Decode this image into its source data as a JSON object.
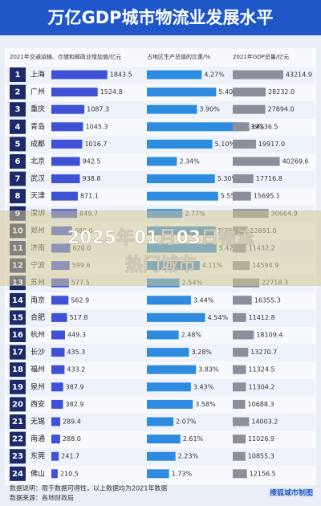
{
  "header": {
    "title": "万亿GDP城市物流业发展水平"
  },
  "rows": {
    "ranks": [
      1,
      2,
      3,
      4,
      5,
      6,
      7,
      8,
      9,
      10,
      11,
      12,
      13,
      14,
      15,
      16,
      17,
      18,
      19,
      20,
      21,
      22,
      23,
      24
    ],
    "cities": [
      "上海",
      "广州",
      "重庆",
      "青岛",
      "成都",
      "北京",
      "武汉",
      "天津",
      "深圳",
      "郑州",
      "济南",
      "宁波",
      "苏州",
      "南京",
      "合肥",
      "杭州",
      "长沙",
      "福州",
      "泉州",
      "西安",
      "无锡",
      "南通",
      "东莞",
      "佛山"
    ]
  },
  "chart_data": [
    {
      "type": "bar",
      "orientation": "horizontal",
      "title": "2021年交通运输、仓储和邮政业增加值/亿元",
      "color": "#3f52d6",
      "xlim": [
        0,
        1850
      ],
      "values": [
        1843.5,
        1524.8,
        1087.3,
        1045.3,
        1016.7,
        942.5,
        938.8,
        871.1,
        849.7,
        680.0,
        620.0,
        599.6,
        577.5,
        562.9,
        517.8,
        449.3,
        435.3,
        433.2,
        387.9,
        382.9,
        289.4,
        288.0,
        241.7,
        210.5
      ],
      "value_labels": [
        "1843.5",
        "1524.8",
        "1087.3",
        "1045.3",
        "1016.7",
        "942.5",
        "938.8",
        "871.1",
        "849.7",
        "680.0",
        "620.0",
        "599.6",
        "577.5",
        "562.9",
        "517.8",
        "449.3",
        "435.3",
        "433.2",
        "387.9",
        "382.9",
        "289.4",
        "288.0",
        "241.7",
        "210.5"
      ]
    },
    {
      "type": "bar",
      "orientation": "horizontal",
      "title": "占地区生产总值的比重/%",
      "color": "#2d8be0",
      "xlim": [
        0,
        7.5
      ],
      "values": [
        4.27,
        5.4,
        3.9,
        7.39,
        5.1,
        2.34,
        5.3,
        5.55,
        2.77,
        5.36,
        5.42,
        4.11,
        2.54,
        3.44,
        4.54,
        2.48,
        3.28,
        3.83,
        3.43,
        3.58,
        2.07,
        2.61,
        2.23,
        1.73
      ],
      "value_labels": [
        "4.27%",
        "5.40%",
        "3.90%",
        "7.39%",
        "5.10%",
        "2.34%",
        "5.30%",
        "5.55%",
        "2.77%",
        "5.36%",
        "5.42%",
        "4.11%",
        "2.54%",
        "3.44%",
        "4.54%",
        "2.48%",
        "3.28%",
        "3.83%",
        "3.43%",
        "3.58%",
        "2.07%",
        "2.61%",
        "2.23%",
        "1.73%"
      ]
    },
    {
      "type": "bar",
      "orientation": "horizontal",
      "title": "2021年GDP总量/亿元",
      "color": "#8a8f9a",
      "xlim": [
        0,
        44000
      ],
      "values": [
        43214.9,
        28232.0,
        27894.0,
        14136.5,
        19917.0,
        40269.6,
        17716.8,
        15695.1,
        30664.9,
        12691.0,
        11432.2,
        14594.9,
        22718.3,
        16355.3,
        11412.8,
        18109.4,
        13270.7,
        11324.5,
        11304.2,
        10688.3,
        14003.2,
        11026.9,
        10855.3,
        12156.5
      ],
      "value_labels": [
        "43214.9",
        "28232.0",
        "27894.0",
        "14136.5",
        "19917.0",
        "40269.6",
        "17716.8",
        "15695.1",
        "30664.9",
        "12691.0",
        "11432.2",
        "14594.9",
        "22718.3",
        "16355.3",
        "11412.8",
        "18109.4",
        "13270.7",
        "11324.5",
        "11304.2",
        "10688.3",
        "14003.2",
        "11026.9",
        "10855.3",
        "12156.5"
      ]
    }
  ],
  "overlay": {
    "line1": "2025年01月03日物流",
    "line2": "热门城市"
  },
  "footer": {
    "note": "数据说明：限于数据可得性，以上数据均为2021年数据",
    "source": "数据来源：各地财政局",
    "credit": "搜狐城市制图"
  }
}
